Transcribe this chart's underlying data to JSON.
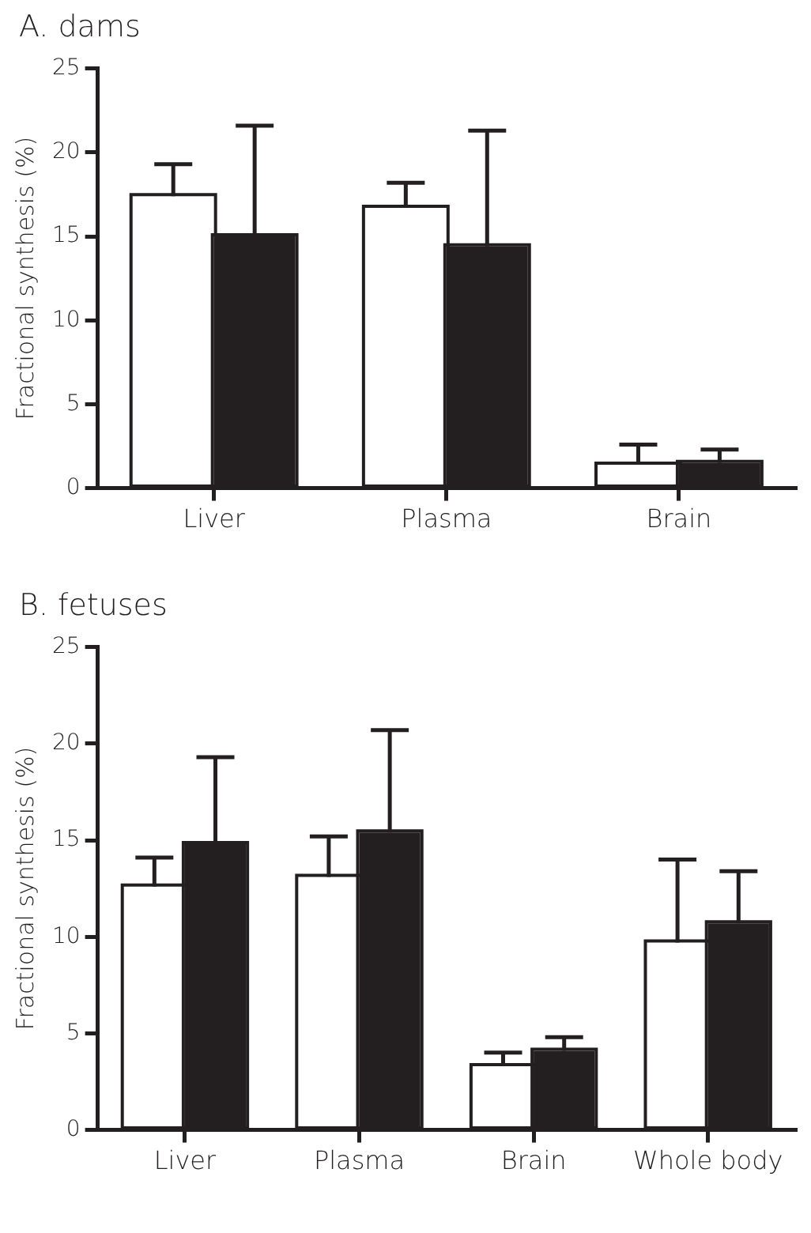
{
  "chart_data": [
    {
      "type": "bar",
      "title": "A. dams",
      "ylabel": "Fractional synthesis (%)",
      "categories": [
        "Liver",
        "Plasma",
        "Brain"
      ],
      "ylim": [
        0,
        25
      ],
      "yticks": [
        0,
        5,
        10,
        15,
        20,
        25
      ],
      "series": [
        {
          "color": "#ffffff",
          "values": [
            17.4,
            16.7,
            1.4
          ],
          "errors": [
            [
              17.4,
              19.3
            ],
            [
              16.7,
              18.2
            ],
            [
              1.4,
              2.6
            ]
          ]
        },
        {
          "color": "#231f20",
          "values": [
            15.0,
            14.4,
            1.5
          ],
          "errors": [
            [
              15.0,
              21.6
            ],
            [
              14.4,
              21.3
            ],
            [
              1.5,
              2.3
            ]
          ]
        }
      ]
    },
    {
      "type": "bar",
      "title": "B. fetuses",
      "ylabel": "Fractional synthesis (%)",
      "categories": [
        "Liver",
        "Plasma",
        "Brain",
        "Whole body"
      ],
      "ylim": [
        0,
        25
      ],
      "yticks": [
        0,
        5,
        10,
        15,
        20,
        25
      ],
      "series": [
        {
          "color": "#ffffff",
          "values": [
            12.6,
            13.1,
            3.3,
            9.7
          ],
          "errors": [
            [
              12.6,
              14.1
            ],
            [
              13.1,
              15.2
            ],
            [
              3.3,
              4.0
            ],
            [
              9.7,
              14.0
            ]
          ]
        },
        {
          "color": "#231f20",
          "values": [
            14.8,
            15.4,
            4.1,
            10.7
          ],
          "errors": [
            [
              14.8,
              19.3
            ],
            [
              15.4,
              20.7
            ],
            [
              4.1,
              4.8
            ],
            [
              10.7,
              13.4
            ]
          ]
        }
      ]
    }
  ]
}
